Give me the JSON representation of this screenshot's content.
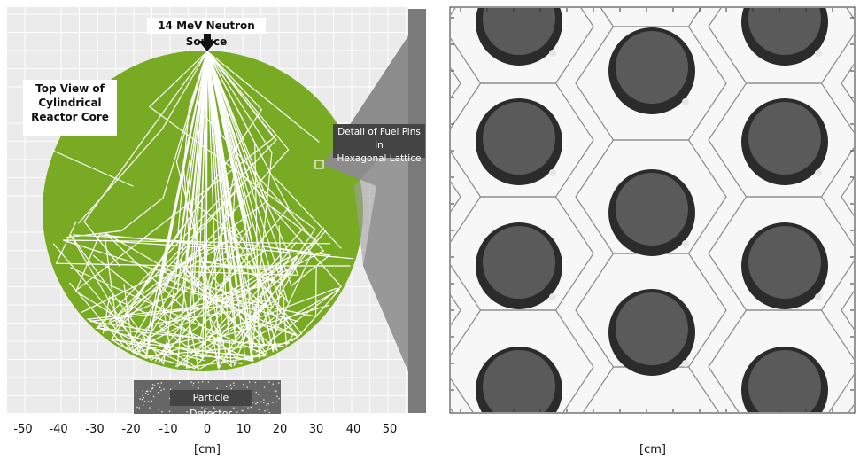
{
  "source_label": "14 MeV Neutron Source",
  "core_label_lines": [
    "Top View of",
    "Cylindrical",
    "Reactor Core"
  ],
  "detail_label_lines": [
    "Detail of Fuel Pins in",
    "Hexagonal Lattice"
  ],
  "detector_label": "Particle Detector",
  "left_axis": {
    "ticks": [
      "-50",
      "-40",
      "-30",
      "-20",
      "-10",
      "0",
      "10",
      "20",
      "30",
      "40",
      "50"
    ],
    "unit": "[cm]"
  },
  "right_axis": {
    "unit": "[cm]"
  },
  "colors": {
    "core": "#78aa23",
    "grid": "#d8d8d8",
    "plot_bg": "#ebebeb",
    "zoom": "#8c8c8c",
    "pin_outer": "#2b2b2b",
    "pin_inner": "#5a5a5a"
  },
  "icons": {
    "source": "down-arrow-icon"
  }
}
